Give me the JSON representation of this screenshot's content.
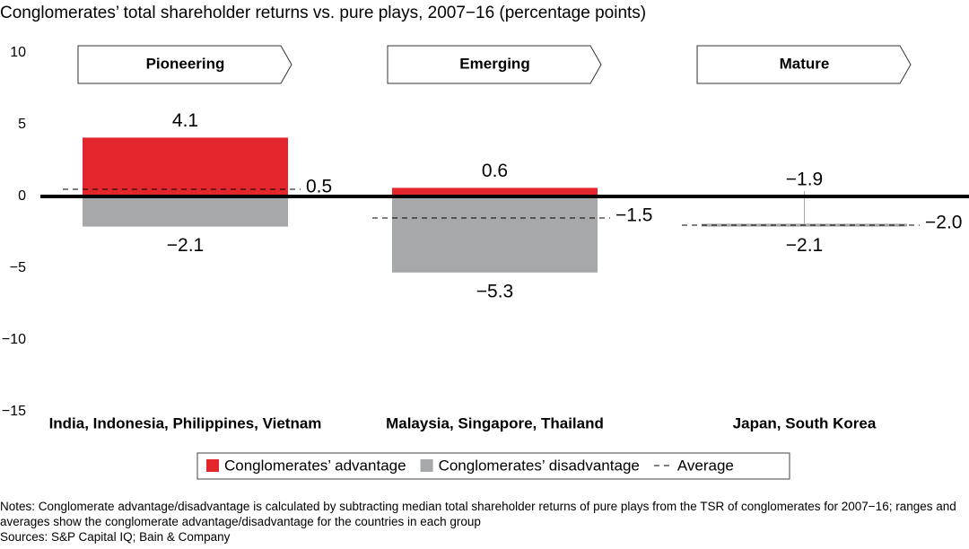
{
  "chart_data": {
    "type": "range-bar",
    "title": "Conglomerates’ total shareholder returns vs. pure plays, 2007−16 (percentage points)",
    "group_labels": [
      "Pioneering",
      "Emerging",
      "Mature"
    ],
    "categories": [
      "India, Indonesia, Philippines, Vietnam",
      "Malaysia, Singapore, Thailand",
      "Japan, South Korea"
    ],
    "series": [
      {
        "name": "Conglomerates’ advantage",
        "color": "#e3262b",
        "values": [
          4.1,
          0.6,
          -1.9
        ],
        "value_labels": [
          "4.1",
          "0.6",
          "−1.9"
        ]
      },
      {
        "name": "Conglomerates’ disadvantage",
        "color": "#a7a8aa",
        "values": [
          -2.1,
          -5.3,
          -2.1
        ],
        "value_labels": [
          "−2.1",
          "−5.3",
          "−2.1"
        ]
      },
      {
        "name": "Average",
        "color": "#000000",
        "values": [
          0.5,
          -1.5,
          -2.0
        ],
        "value_labels": [
          "0.5",
          "−1.5",
          "−2.0"
        ]
      }
    ],
    "ylim": [
      -15,
      10
    ],
    "yticks": [
      10,
      5,
      0,
      {
        "value": -5,
        "label": "−5"
      },
      {
        "value": -10,
        "label": "−10"
      },
      {
        "value": -15,
        "label": "−15"
      }
    ],
    "notes": "Notes: Conglomerate advantage/disadvantage is calculated by subtracting median total shareholder returns of pure plays from the TSR of conglomerates for 2007−16; ranges and averages show the conglomerate advantage/disadvantage for the countries in each group",
    "sources": "Sources: S&P Capital IQ; Bain & Company"
  }
}
